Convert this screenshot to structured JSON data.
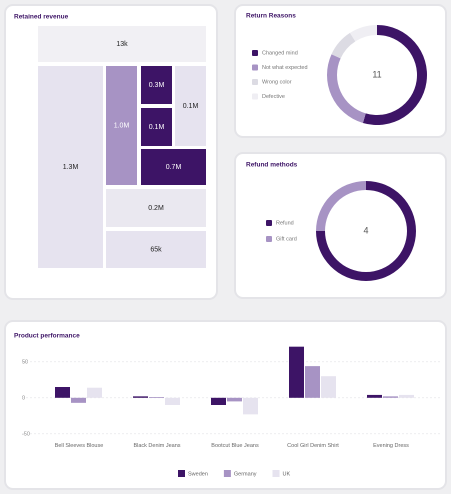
{
  "chart_data": [
    {
      "type": "treemap",
      "title": "Retained revenue",
      "values": [
        13000,
        1300000,
        1000000,
        300000,
        100000,
        100000,
        700000,
        200000,
        65000
      ],
      "value_labels": [
        "13k",
        "1.3M",
        "1.0M",
        "0.3M",
        "0.1M",
        "0.1M",
        "0.7M",
        "0.2M",
        "65k"
      ],
      "colors": [
        "#f1f0f4",
        "#e6e3ef",
        "#a793c4",
        "#3d1466",
        "#e6e3ef",
        "#3d1466",
        "#3d1466",
        "#eae8f0",
        "#e6e3ef"
      ]
    },
    {
      "type": "donut",
      "title": "Return Reasons",
      "categories": [
        "Changed mind",
        "Not what expected",
        "Wrong color",
        "Defective"
      ],
      "values": [
        6,
        3,
        1,
        1
      ],
      "colors": [
        "#3d1466",
        "#a793c4",
        "#dcdbe3",
        "#efeef3"
      ],
      "total": 11
    },
    {
      "type": "donut",
      "title": "Refund methods",
      "categories": [
        "Refund",
        "Gift card"
      ],
      "values": [
        3,
        1
      ],
      "colors": [
        "#3d1466",
        "#a793c4"
      ],
      "total": 4
    },
    {
      "type": "bar",
      "title": "Product performance",
      "categories": [
        "Bell Sleeves Blouse",
        "Black Denim Jeans",
        "Bootcut Blue Jeans",
        "Cool Girl Denim Shirt",
        "Evening Dress"
      ],
      "series": [
        {
          "name": "Sweden",
          "color": "#3d1466",
          "values": [
            15,
            2,
            -10,
            71,
            4
          ]
        },
        {
          "name": "Germany",
          "color": "#a793c4",
          "values": [
            -7,
            1,
            -5,
            44,
            2
          ]
        },
        {
          "name": "UK",
          "color": "#e6e3ef",
          "values": [
            14,
            -10,
            -23,
            30,
            4
          ]
        }
      ],
      "ylim": [
        -60,
        65
      ],
      "yticks": [
        -50,
        0,
        50
      ],
      "grid": true,
      "legend": "bottom"
    }
  ]
}
